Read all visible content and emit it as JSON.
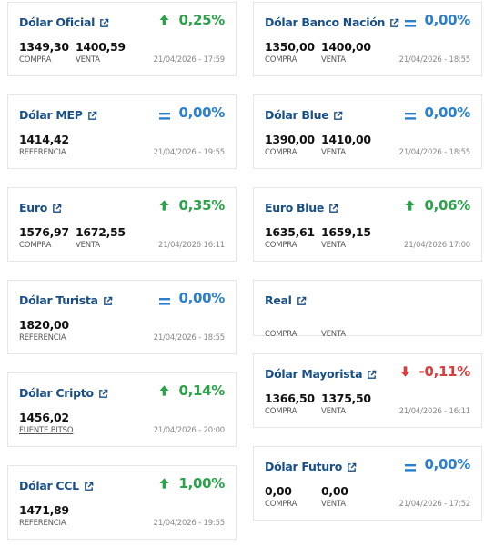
{
  "left": [
    {
      "title": "Dólar Oficial",
      "change": "0,25%",
      "direction": "up",
      "values": [
        {
          "value": "1349,30",
          "label": "COMPRA"
        },
        {
          "value": "1400,59",
          "label": "VENTA"
        }
      ],
      "date": "21/04/2026 - 17:59"
    },
    {
      "title": "Dólar MEP",
      "change": "0,00%",
      "direction": "equal",
      "values": [
        {
          "value": "1414,42",
          "label": "REFERENCIA"
        }
      ],
      "date": "21/04/2026 - 19:55"
    },
    {
      "title": "Euro",
      "change": "0,35%",
      "direction": "up",
      "values": [
        {
          "value": "1576,97",
          "label": "COMPRA"
        },
        {
          "value": "1672,55",
          "label": "VENTA"
        }
      ],
      "date": "21/04/2026 16:11"
    },
    {
      "title": "Dólar Turista",
      "change": "0,00%",
      "direction": "equal",
      "values": [
        {
          "value": "1820,00",
          "label": "REFERENCIA"
        }
      ],
      "date": "21/04/2026 - 18:55"
    },
    {
      "title": "Dólar Cripto",
      "change": "0,14%",
      "direction": "up",
      "values": [
        {
          "value": "1456,02",
          "label": "FUENTE BITSO",
          "link": true
        }
      ],
      "date": "21/04/2026 - 20:00"
    },
    {
      "title": "Dólar CCL",
      "change": "1,00%",
      "direction": "up",
      "values": [
        {
          "value": "1471,89",
          "label": "REFERENCIA"
        }
      ],
      "date": "21/04/2026 - 19:55"
    }
  ],
  "right": [
    {
      "title": "Dólar Banco Nación",
      "change": "0,00%",
      "direction": "equal",
      "values": [
        {
          "value": "1350,00",
          "label": "COMPRA"
        },
        {
          "value": "1400,00",
          "label": "VENTA"
        }
      ],
      "date": "21/04/2026 - 18:55"
    },
    {
      "title": "Dólar Blue",
      "change": "0,00%",
      "direction": "equal",
      "values": [
        {
          "value": "1390,00",
          "label": "COMPRA"
        },
        {
          "value": "1410,00",
          "label": "VENTA"
        }
      ],
      "date": "21/04/2026 - 18:55"
    },
    {
      "title": "Euro Blue",
      "change": "0,06%",
      "direction": "up",
      "values": [
        {
          "value": "1635,61",
          "label": "COMPRA"
        },
        {
          "value": "1659,15",
          "label": "VENTA"
        }
      ],
      "date": "21/04/2026 17:00"
    },
    {
      "title": "Real",
      "change": "",
      "direction": "none",
      "values": [
        {
          "value": "",
          "label": "COMPRA"
        },
        {
          "value": "",
          "label": "VENTA"
        }
      ],
      "date": ""
    },
    {
      "title": "Dólar Mayorista",
      "change": "-0,11%",
      "direction": "down",
      "values": [
        {
          "value": "1366,50",
          "label": "COMPRA"
        },
        {
          "value": "1375,50",
          "label": "VENTA"
        }
      ],
      "date": "21/04/2026 - 16:11"
    },
    {
      "title": "Dólar Futuro",
      "change": "0,00%",
      "direction": "equal",
      "values": [
        {
          "value": "0,00",
          "label": "COMPRA"
        },
        {
          "value": "0,00",
          "label": "VENTA"
        }
      ],
      "date": "21/04/2026 - 17:52"
    }
  ],
  "colors": {
    "title": "#1a4f86",
    "up": "#2aa34a",
    "down": "#d93d3d",
    "equal": "#2a7fd1"
  },
  "icons": {
    "external": "external-link-icon",
    "up": "arrow-up-icon",
    "down": "arrow-down-icon",
    "equal": "equal-icon"
  }
}
